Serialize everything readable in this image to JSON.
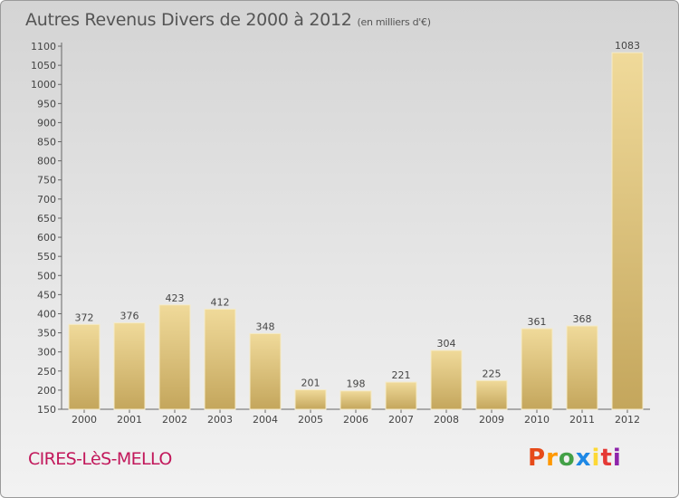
{
  "title": "Autres Revenus Divers de 2000 à 2012",
  "unit": "(en milliers d'€)",
  "commune": "CIRES-LèS-MELLO",
  "logo": {
    "text": "Proxiti",
    "colors": [
      "#e64a19",
      "#ff9800",
      "#43a047",
      "#1e88e5",
      "#fdd835",
      "#e53935",
      "#8e24aa"
    ]
  },
  "colors": {
    "bar_top": "#f0da9a",
    "bar_bottom": "#c4a65c",
    "axis": "#666666"
  },
  "chart_data": {
    "type": "bar",
    "categories": [
      "2000",
      "2001",
      "2002",
      "2003",
      "2004",
      "2005",
      "2006",
      "2007",
      "2008",
      "2009",
      "2010",
      "2011",
      "2012"
    ],
    "values": [
      372,
      376,
      423,
      412,
      348,
      201,
      198,
      221,
      304,
      225,
      361,
      368,
      1083
    ],
    "ylim": [
      150,
      1100
    ],
    "yticks": [
      150,
      200,
      250,
      300,
      350,
      400,
      450,
      500,
      550,
      600,
      650,
      700,
      750,
      800,
      850,
      900,
      950,
      1000,
      1050,
      1100
    ],
    "grid": false
  }
}
